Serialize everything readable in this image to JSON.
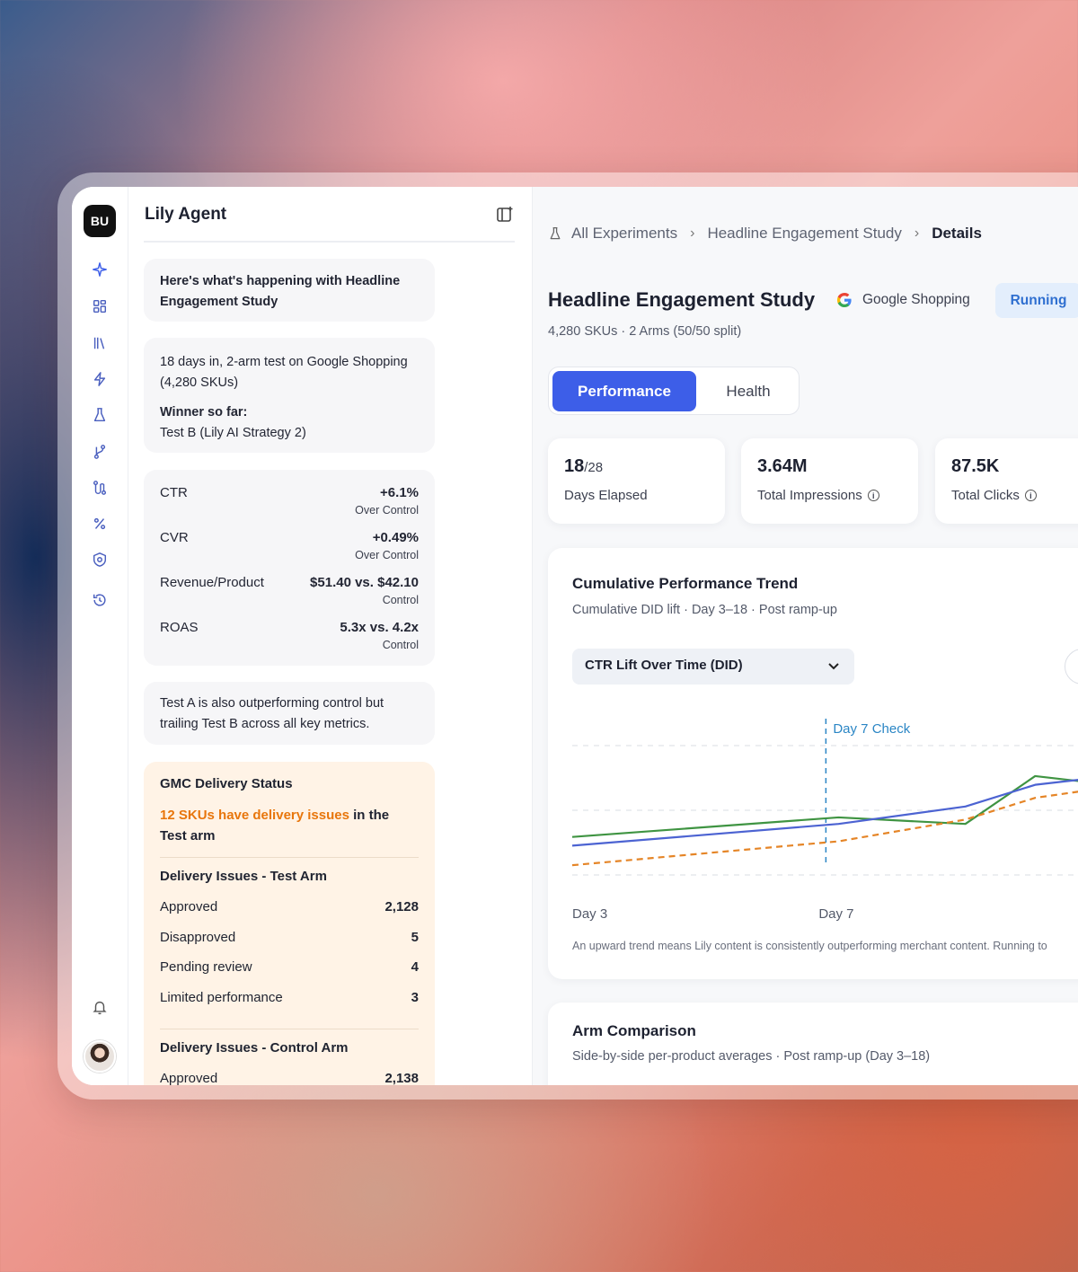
{
  "rail": {
    "workspace_initials": "BU",
    "icons": [
      "sparkle-icon",
      "grid-icon",
      "library-icon",
      "lightning-icon",
      "flask-icon",
      "branch-icon",
      "route-icon",
      "percent-icon",
      "shield-icon",
      "history-icon",
      "bell-icon"
    ]
  },
  "agent": {
    "title": "Lily Agent",
    "intro": "Here's what's happening with Headline Engagement Study",
    "summary": "18 days in, 2-arm test on Google Shopping (4,280 SKUs)",
    "winner_label": "Winner so far:",
    "winner_value": "Test B (Lily AI Strategy 2)",
    "metrics": [
      {
        "label": "CTR",
        "value": "+6.1%",
        "sub": "Over Control"
      },
      {
        "label": "CVR",
        "value": "+0.49%",
        "sub": "Over Control"
      },
      {
        "label": "Revenue/Product",
        "value": "$51.40 vs. $42.10",
        "sub": "Control"
      },
      {
        "label": "ROAS",
        "value": "5.3x vs. 4.2x",
        "sub": "Control"
      }
    ],
    "note": "Test A is also outperforming control but trailing Test B across all key metrics.",
    "gmc": {
      "title": "GMC Delivery Status",
      "warn_highlight": "12 SKUs have delivery issues",
      "warn_rest": " in the Test arm",
      "test_title": "Delivery Issues - Test Arm",
      "test_rows": [
        {
          "label": "Approved",
          "value": "2,128"
        },
        {
          "label": "Disapproved",
          "value": "5"
        },
        {
          "label": "Pending review",
          "value": "4"
        },
        {
          "label": "Limited performance",
          "value": "3"
        }
      ],
      "control_title": "Delivery Issues - Control Arm",
      "control_rows": [
        {
          "label": "Approved",
          "value": "2,138"
        }
      ]
    }
  },
  "main": {
    "breadcrumb": [
      "All Experiments",
      "Headline Engagement Study",
      "Details"
    ],
    "title": "Headline Engagement Study",
    "channel": "Google Shopping",
    "status": "Running",
    "meta": "4,280 SKUs · 2 Arms (50/50 split)",
    "tabs": [
      "Performance",
      "Health"
    ],
    "stats": [
      {
        "value": "18",
        "suffix": "/28",
        "label": "Days Elapsed"
      },
      {
        "value": "3.64M",
        "suffix": "",
        "label": "Total Impressions"
      },
      {
        "value": "87.5K",
        "suffix": "",
        "label": "Total Clicks"
      }
    ],
    "trend": {
      "title": "Cumulative Performance Trend",
      "subtitle": "Cumulative DID lift · Day 3–18 · Post ramp-up",
      "dropdown": "CTR Lift Over Time (DID)",
      "caption": "An upward trend means Lily content is consistently outperforming merchant content. Running to"
    },
    "arm": {
      "title": "Arm Comparison",
      "subtitle": "Side-by-side per-product averages · Post ramp-up (Day 3–18)"
    }
  },
  "chart_data": {
    "type": "line",
    "title": "",
    "x_tick_labels": [
      "Day 3",
      "Day 7"
    ],
    "annotation": "Day 7 Check",
    "annotation_x": 7,
    "xlim": [
      3,
      11.5
    ],
    "ylim": [
      0,
      3.1
    ],
    "grid": true,
    "series": [
      {
        "color": "#3f9442",
        "style": "solid",
        "x": [
          3,
          7.2,
          9.2,
          10.3,
          11.5
        ],
        "y": [
          0.75,
          1.2,
          1.05,
          2.15,
          1.95
        ]
      },
      {
        "color": "#4c63d2",
        "style": "solid",
        "x": [
          3,
          7.2,
          9.2,
          10.3,
          11.5
        ],
        "y": [
          0.55,
          1.05,
          1.45,
          1.95,
          2.15
        ]
      },
      {
        "color": "#e58527",
        "style": "dashed",
        "x": [
          3,
          7.2,
          9.2,
          10.3,
          11.5
        ],
        "y": [
          0.1,
          0.65,
          1.15,
          1.65,
          1.9
        ]
      }
    ]
  }
}
